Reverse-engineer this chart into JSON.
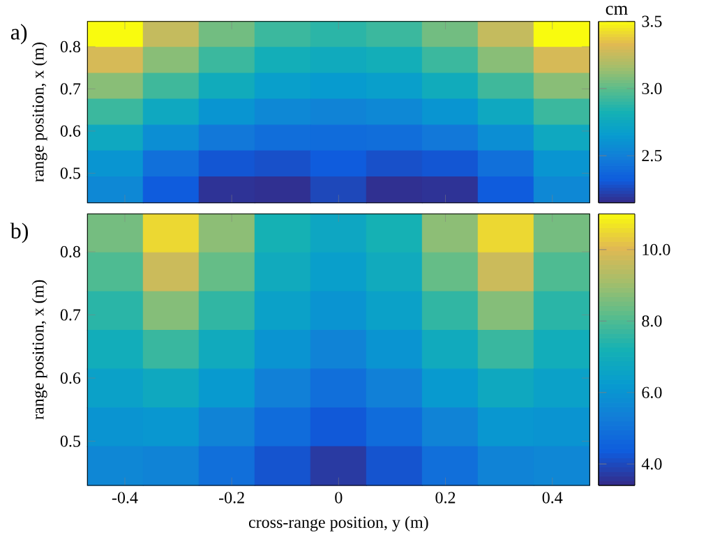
{
  "chart_data": [
    {
      "type": "heatmap",
      "ylabel": "range position, x (m)",
      "annotations": [
        "a)"
      ],
      "xlim": [
        -0.47,
        0.47
      ],
      "ylim": [
        0.43,
        0.86
      ],
      "xticks": [
        -0.4,
        -0.2,
        0,
        0.2,
        0.4
      ],
      "yticks": [
        0.5,
        0.6,
        0.7,
        0.8
      ],
      "tick_labels": "y",
      "clabel": "cm",
      "clim": [
        2.15,
        3.5
      ],
      "cticks": [
        {
          "value": 2.5,
          "label": "2.5"
        },
        {
          "value": 3.0,
          "label": "3.0"
        },
        {
          "value": 3.5,
          "label": "3.5"
        }
      ],
      "cells": [
        [
          3.5,
          3.25,
          3.05,
          2.92,
          2.88,
          2.92,
          3.05,
          3.25,
          3.5
        ],
        [
          3.3,
          3.1,
          2.92,
          2.8,
          2.77,
          2.8,
          2.92,
          3.1,
          3.3
        ],
        [
          3.1,
          2.93,
          2.78,
          2.68,
          2.65,
          2.68,
          2.78,
          2.93,
          3.1
        ],
        [
          2.92,
          2.75,
          2.62,
          2.55,
          2.52,
          2.55,
          2.62,
          2.75,
          2.92
        ],
        [
          2.75,
          2.58,
          2.46,
          2.41,
          2.4,
          2.41,
          2.46,
          2.58,
          2.75
        ],
        [
          2.62,
          2.42,
          2.3,
          2.28,
          2.32,
          2.28,
          2.3,
          2.42,
          2.62
        ],
        [
          2.55,
          2.32,
          2.18,
          2.17,
          2.25,
          2.17,
          2.18,
          2.32,
          2.55
        ]
      ]
    },
    {
      "type": "heatmap",
      "xlabel": "cross-range position, y (m)",
      "ylabel": "range position, x (m)",
      "annotations": [
        "b)"
      ],
      "xlim": [
        -0.47,
        0.47
      ],
      "ylim": [
        0.43,
        0.86
      ],
      "xticks": [
        -0.4,
        -0.2,
        0,
        0.2,
        0.4
      ],
      "yticks": [
        0.5,
        0.6,
        0.7,
        0.8
      ],
      "clim": [
        3.4,
        11
      ],
      "cticks": [
        {
          "value": 4.0,
          "label": "4.0"
        },
        {
          "value": 6.0,
          "label": "6.0"
        },
        {
          "value": 8.0,
          "label": "8.0"
        },
        {
          "value": 10.0,
          "label": "10.0"
        }
      ],
      "cells": [
        [
          8.5,
          10.5,
          8.8,
          7.2,
          6.7,
          7.2,
          8.8,
          10.5,
          8.5
        ],
        [
          8.0,
          9.7,
          8.3,
          6.9,
          6.4,
          6.9,
          8.3,
          9.7,
          8.0
        ],
        [
          7.5,
          8.7,
          7.6,
          6.5,
          6.0,
          6.5,
          7.6,
          8.7,
          7.5
        ],
        [
          7.0,
          7.7,
          6.9,
          6.0,
          5.5,
          6.0,
          6.9,
          7.7,
          7.0
        ],
        [
          6.5,
          6.8,
          6.2,
          5.4,
          4.9,
          5.4,
          6.2,
          6.8,
          6.5
        ],
        [
          6.0,
          6.1,
          5.5,
          4.8,
          4.3,
          4.8,
          5.5,
          6.1,
          6.0
        ],
        [
          5.6,
          5.5,
          4.9,
          4.2,
          3.7,
          4.2,
          4.9,
          5.5,
          5.6
        ]
      ]
    }
  ]
}
